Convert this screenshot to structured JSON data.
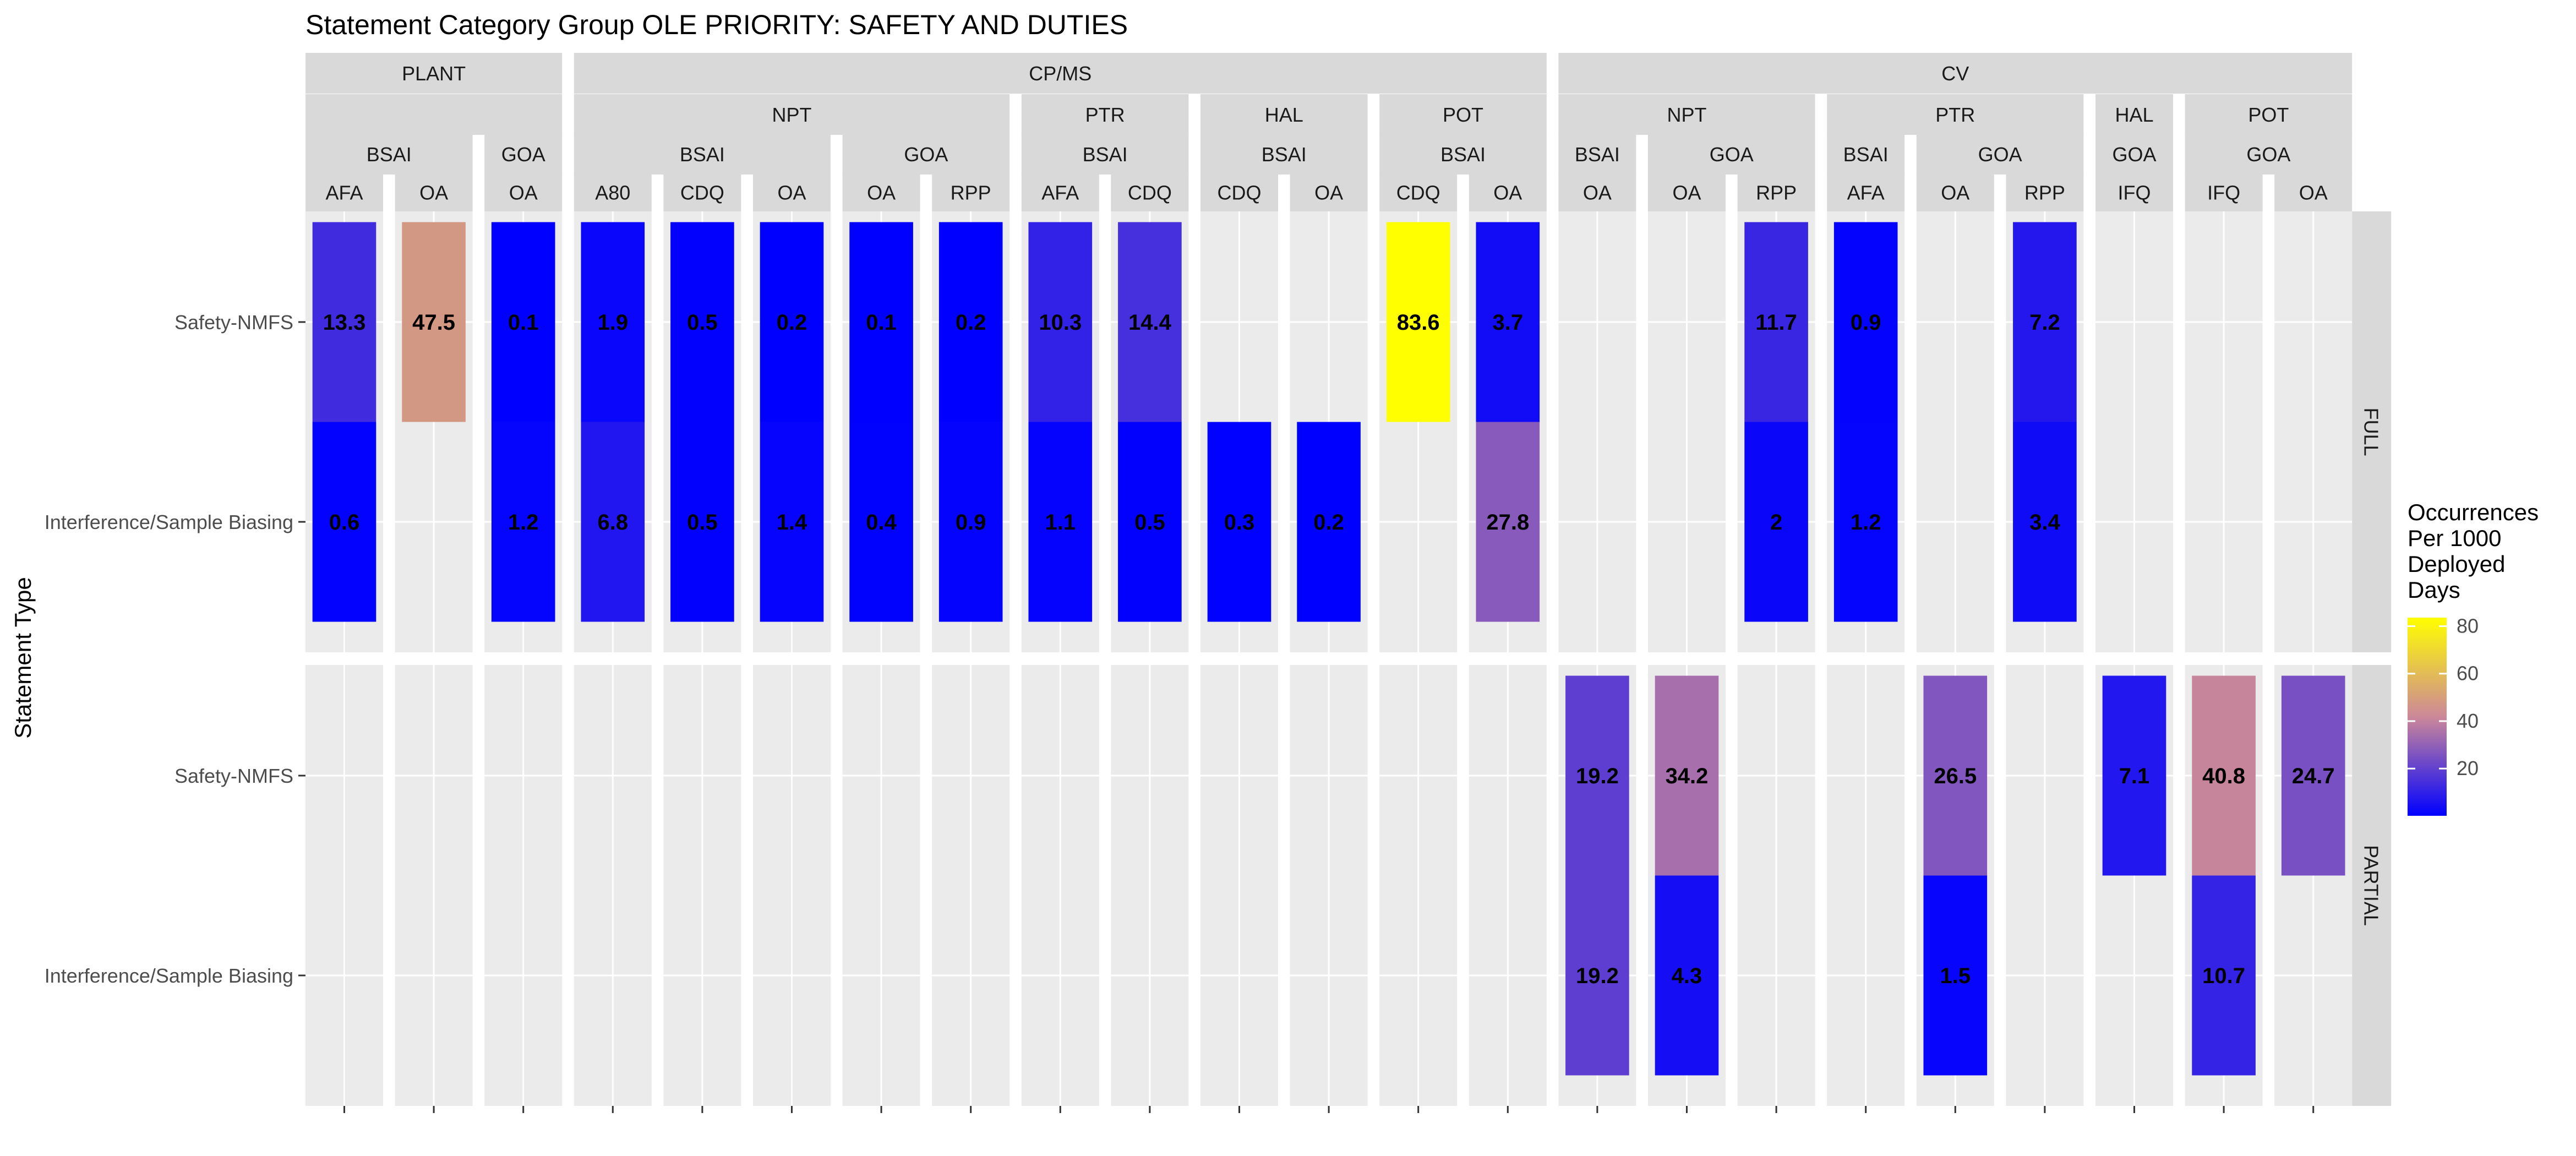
{
  "chart_data": {
    "type": "heatmap",
    "title": "Statement Category Group OLE PRIORITY: SAFETY AND DUTIES",
    "ylabel": "Statement Type",
    "y_categories": [
      "Safety-NMFS",
      "Interference/Sample Biasing"
    ],
    "row_facets": [
      "FULL",
      "PARTIAL"
    ],
    "column_facets": [
      {
        "l1": "PLANT",
        "l2": "",
        "l3": "BSAI",
        "l4": "AFA"
      },
      {
        "l1": "PLANT",
        "l2": "",
        "l3": "BSAI",
        "l4": "OA"
      },
      {
        "l1": "PLANT",
        "l2": "",
        "l3": "GOA",
        "l4": "OA"
      },
      {
        "l1": "CP/MS",
        "l2": "NPT",
        "l3": "BSAI",
        "l4": "A80"
      },
      {
        "l1": "CP/MS",
        "l2": "NPT",
        "l3": "BSAI",
        "l4": "CDQ"
      },
      {
        "l1": "CP/MS",
        "l2": "NPT",
        "l3": "BSAI",
        "l4": "OA"
      },
      {
        "l1": "CP/MS",
        "l2": "NPT",
        "l3": "GOA",
        "l4": "OA"
      },
      {
        "l1": "CP/MS",
        "l2": "NPT",
        "l3": "GOA",
        "l4": "RPP"
      },
      {
        "l1": "CP/MS",
        "l2": "PTR",
        "l3": "BSAI",
        "l4": "AFA"
      },
      {
        "l1": "CP/MS",
        "l2": "PTR",
        "l3": "BSAI",
        "l4": "CDQ"
      },
      {
        "l1": "CP/MS",
        "l2": "HAL",
        "l3": "BSAI",
        "l4": "CDQ"
      },
      {
        "l1": "CP/MS",
        "l2": "HAL",
        "l3": "BSAI",
        "l4": "OA"
      },
      {
        "l1": "CP/MS",
        "l2": "POT",
        "l3": "BSAI",
        "l4": "CDQ"
      },
      {
        "l1": "CP/MS",
        "l2": "POT",
        "l3": "BSAI",
        "l4": "OA"
      },
      {
        "l1": "CV",
        "l2": "NPT",
        "l3": "BSAI",
        "l4": "OA"
      },
      {
        "l1": "CV",
        "l2": "NPT",
        "l3": "GOA",
        "l4": "OA"
      },
      {
        "l1": "CV",
        "l2": "NPT",
        "l3": "GOA",
        "l4": "RPP"
      },
      {
        "l1": "CV",
        "l2": "PTR",
        "l3": "BSAI",
        "l4": "AFA"
      },
      {
        "l1": "CV",
        "l2": "PTR",
        "l3": "GOA",
        "l4": "OA"
      },
      {
        "l1": "CV",
        "l2": "PTR",
        "l3": "GOA",
        "l4": "RPP"
      },
      {
        "l1": "CV",
        "l2": "HAL",
        "l3": "GOA",
        "l4": "IFQ"
      },
      {
        "l1": "CV",
        "l2": "POT",
        "l3": "GOA",
        "l4": "IFQ"
      },
      {
        "l1": "CV",
        "l2": "POT",
        "l3": "GOA",
        "l4": "OA"
      }
    ],
    "cells": [
      {
        "row": "FULL",
        "col": 0,
        "y": "Safety-NMFS",
        "value": 13.3,
        "label": "13.3"
      },
      {
        "row": "FULL",
        "col": 0,
        "y": "Interference/Sample Biasing",
        "value": 0.6,
        "label": "0.6"
      },
      {
        "row": "FULL",
        "col": 1,
        "y": "Safety-NMFS",
        "value": 47.5,
        "label": "47.5"
      },
      {
        "row": "FULL",
        "col": 2,
        "y": "Safety-NMFS",
        "value": 0.1,
        "label": "0.1"
      },
      {
        "row": "FULL",
        "col": 2,
        "y": "Interference/Sample Biasing",
        "value": 1.2,
        "label": "1.2"
      },
      {
        "row": "FULL",
        "col": 3,
        "y": "Safety-NMFS",
        "value": 1.9,
        "label": "1.9"
      },
      {
        "row": "FULL",
        "col": 3,
        "y": "Interference/Sample Biasing",
        "value": 6.8,
        "label": "6.8"
      },
      {
        "row": "FULL",
        "col": 4,
        "y": "Safety-NMFS",
        "value": 0.5,
        "label": "0.5"
      },
      {
        "row": "FULL",
        "col": 4,
        "y": "Interference/Sample Biasing",
        "value": 0.5,
        "label": "0.5"
      },
      {
        "row": "FULL",
        "col": 5,
        "y": "Safety-NMFS",
        "value": 0.2,
        "label": "0.2"
      },
      {
        "row": "FULL",
        "col": 5,
        "y": "Interference/Sample Biasing",
        "value": 1.4,
        "label": "1.4"
      },
      {
        "row": "FULL",
        "col": 6,
        "y": "Safety-NMFS",
        "value": 0.1,
        "label": "0.1"
      },
      {
        "row": "FULL",
        "col": 6,
        "y": "Interference/Sample Biasing",
        "value": 0.4,
        "label": "0.4"
      },
      {
        "row": "FULL",
        "col": 7,
        "y": "Safety-NMFS",
        "value": 0.2,
        "label": "0.2"
      },
      {
        "row": "FULL",
        "col": 7,
        "y": "Interference/Sample Biasing",
        "value": 0.9,
        "label": "0.9"
      },
      {
        "row": "FULL",
        "col": 8,
        "y": "Safety-NMFS",
        "value": 10.3,
        "label": "10.3"
      },
      {
        "row": "FULL",
        "col": 8,
        "y": "Interference/Sample Biasing",
        "value": 1.1,
        "label": "1.1"
      },
      {
        "row": "FULL",
        "col": 9,
        "y": "Safety-NMFS",
        "value": 14.4,
        "label": "14.4"
      },
      {
        "row": "FULL",
        "col": 9,
        "y": "Interference/Sample Biasing",
        "value": 0.5,
        "label": "0.5"
      },
      {
        "row": "FULL",
        "col": 10,
        "y": "Interference/Sample Biasing",
        "value": 0.3,
        "label": "0.3"
      },
      {
        "row": "FULL",
        "col": 11,
        "y": "Interference/Sample Biasing",
        "value": 0.2,
        "label": "0.2"
      },
      {
        "row": "FULL",
        "col": 12,
        "y": "Safety-NMFS",
        "value": 83.6,
        "label": "83.6"
      },
      {
        "row": "FULL",
        "col": 13,
        "y": "Safety-NMFS",
        "value": 3.7,
        "label": "3.7"
      },
      {
        "row": "FULL",
        "col": 13,
        "y": "Interference/Sample Biasing",
        "value": 27.8,
        "label": "27.8"
      },
      {
        "row": "FULL",
        "col": 16,
        "y": "Safety-NMFS",
        "value": 11.7,
        "label": "11.7"
      },
      {
        "row": "FULL",
        "col": 16,
        "y": "Interference/Sample Biasing",
        "value": 2,
        "label": "2"
      },
      {
        "row": "FULL",
        "col": 17,
        "y": "Safety-NMFS",
        "value": 0.9,
        "label": "0.9"
      },
      {
        "row": "FULL",
        "col": 17,
        "y": "Interference/Sample Biasing",
        "value": 1.2,
        "label": "1.2"
      },
      {
        "row": "FULL",
        "col": 19,
        "y": "Safety-NMFS",
        "value": 7.2,
        "label": "7.2"
      },
      {
        "row": "FULL",
        "col": 19,
        "y": "Interference/Sample Biasing",
        "value": 3.4,
        "label": "3.4"
      },
      {
        "row": "PARTIAL",
        "col": 14,
        "y": "Safety-NMFS",
        "value": 19.2,
        "label": "19.2"
      },
      {
        "row": "PARTIAL",
        "col": 14,
        "y": "Interference/Sample Biasing",
        "value": 19.2,
        "label": "19.2"
      },
      {
        "row": "PARTIAL",
        "col": 15,
        "y": "Safety-NMFS",
        "value": 34.2,
        "label": "34.2"
      },
      {
        "row": "PARTIAL",
        "col": 15,
        "y": "Interference/Sample Biasing",
        "value": 4.3,
        "label": "4.3"
      },
      {
        "row": "PARTIAL",
        "col": 18,
        "y": "Safety-NMFS",
        "value": 26.5,
        "label": "26.5"
      },
      {
        "row": "PARTIAL",
        "col": 18,
        "y": "Interference/Sample Biasing",
        "value": 1.5,
        "label": "1.5"
      },
      {
        "row": "PARTIAL",
        "col": 20,
        "y": "Safety-NMFS",
        "value": 7.1,
        "label": "7.1"
      },
      {
        "row": "PARTIAL",
        "col": 21,
        "y": "Safety-NMFS",
        "value": 40.8,
        "label": "40.8"
      },
      {
        "row": "PARTIAL",
        "col": 21,
        "y": "Interference/Sample Biasing",
        "value": 10.7,
        "label": "10.7"
      },
      {
        "row": "PARTIAL",
        "col": 22,
        "y": "Safety-NMFS",
        "value": 24.7,
        "label": "24.7"
      }
    ],
    "legend": {
      "title_lines": [
        "Occurrences",
        "Per 1000",
        "Deployed",
        "Days"
      ],
      "position": "right",
      "min": 0.1,
      "max": 83.6,
      "breaks": [
        20,
        40,
        60,
        80
      ],
      "colors": {
        "low": "#0000ff",
        "mid": "#cc8899",
        "high": "#ffff00"
      }
    },
    "grid": true
  }
}
